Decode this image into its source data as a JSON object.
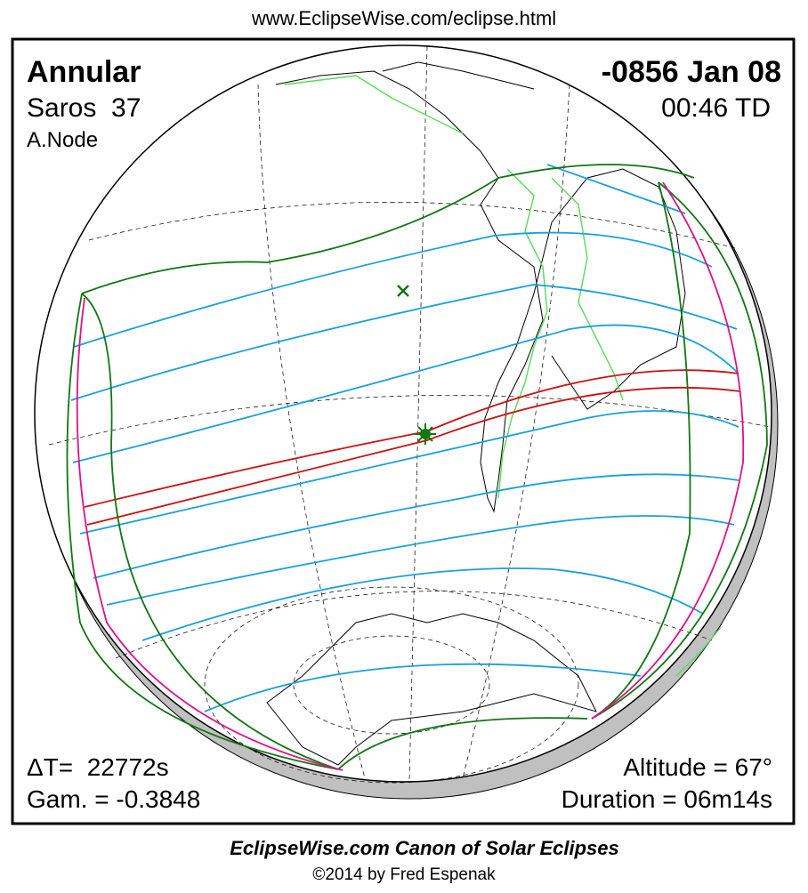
{
  "header": {
    "url": "www.EclipseWise.com/eclipse.html"
  },
  "eclipse": {
    "type": "Annular",
    "saros": "Saros  37",
    "node": "A.Node",
    "date": "-0856 Jan 08",
    "time": "00:46 TD",
    "delta_t": "ΔT=  22772s",
    "gamma": "Gam. = -0.3848",
    "altitude": "Altitude = 67°",
    "duration": "Duration = 06m14s"
  },
  "footer": {
    "title": "EclipseWise.com Canon of Solar Eclipses",
    "copyright": "©2014 by Fred Espenak"
  }
}
